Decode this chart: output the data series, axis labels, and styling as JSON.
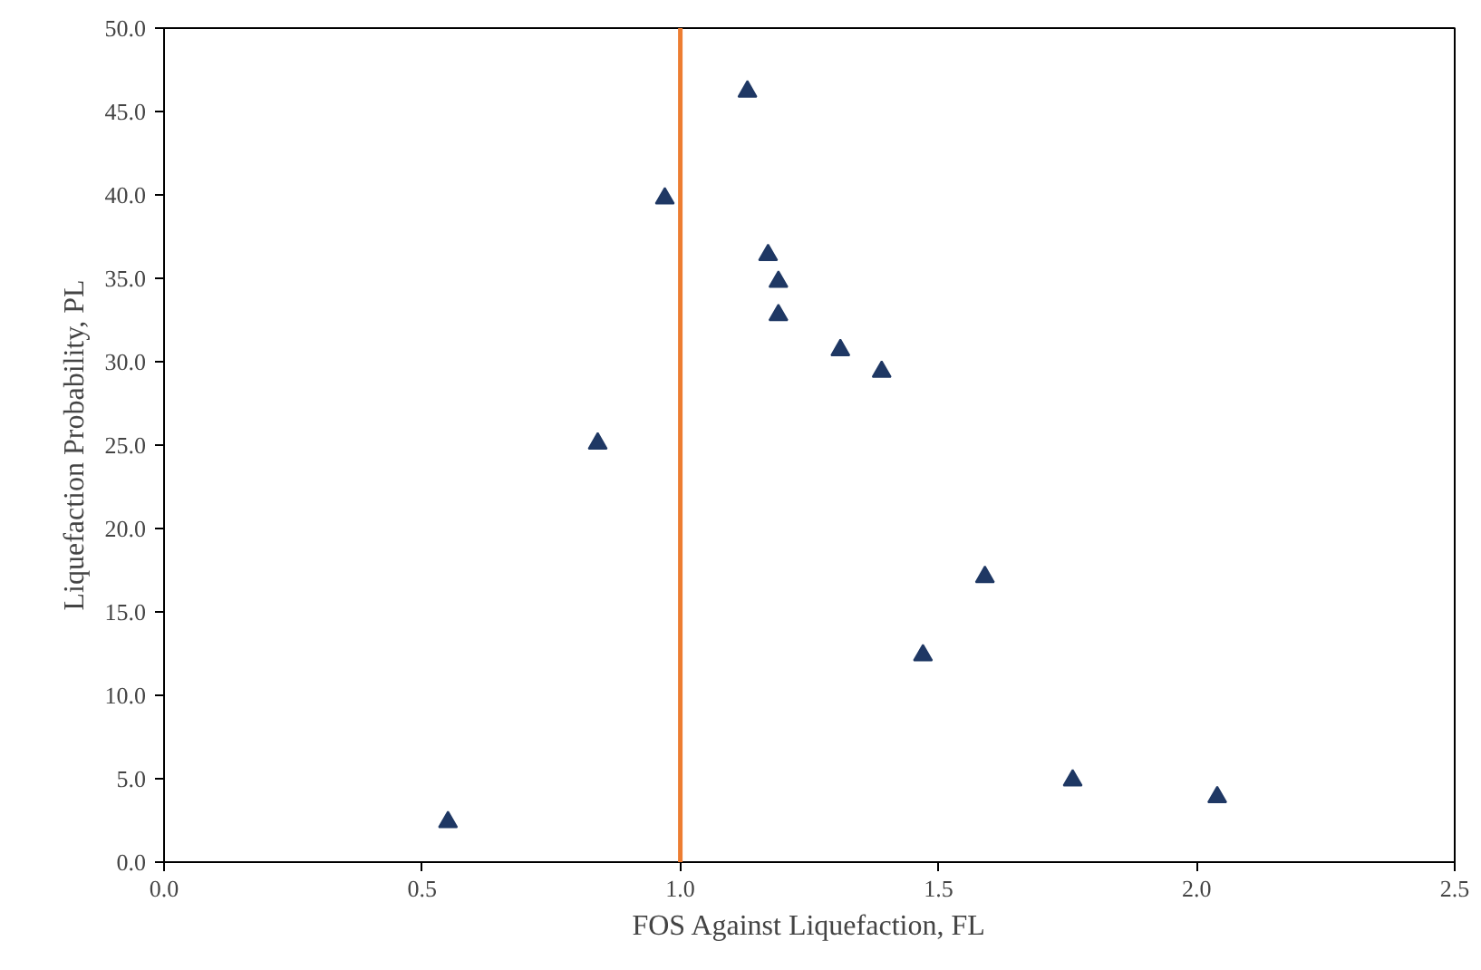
{
  "chart_data": {
    "type": "scatter",
    "xlabel": "FOS Against Liquefaction, FL",
    "ylabel": "Liquefaction Probability, PL",
    "x": [
      0.55,
      0.84,
      0.97,
      1.13,
      1.17,
      1.19,
      1.19,
      1.31,
      1.39,
      1.47,
      1.59,
      1.76,
      2.04
    ],
    "series": [
      {
        "color": "#1f3864",
        "values": [
          2.4,
          25.1,
          39.8,
          46.2,
          36.4,
          34.8,
          32.8,
          30.7,
          29.4,
          12.4,
          17.1,
          4.9,
          3.9
        ]
      }
    ],
    "marker": "triangle",
    "grid": false,
    "xlim": [
      0,
      2.5
    ],
    "ylim": [
      0,
      50
    ],
    "xticks": [
      {
        "value": 0,
        "label": "0.0"
      },
      0.5,
      {
        "value": 1,
        "label": "1.0"
      },
      1.5,
      {
        "value": 2,
        "label": "2.0"
      },
      2.5
    ],
    "yticks": [
      {
        "value": 0,
        "label": "0.0"
      },
      {
        "value": 5,
        "label": "5.0"
      },
      {
        "value": 10,
        "label": "10.0"
      },
      {
        "value": 15,
        "label": "15.0"
      },
      {
        "value": 20,
        "label": "20.0"
      },
      {
        "value": 25,
        "label": "25.0"
      },
      {
        "value": 30,
        "label": "30.0"
      },
      {
        "value": 35,
        "label": "35.0"
      },
      {
        "value": 40,
        "label": "40.0"
      },
      {
        "value": 45,
        "label": "45.0"
      },
      {
        "value": 50,
        "label": "50.0"
      }
    ],
    "ref_lines": [
      {
        "axis": "x",
        "value": 1.0,
        "color": "#ed7d31"
      }
    ]
  }
}
